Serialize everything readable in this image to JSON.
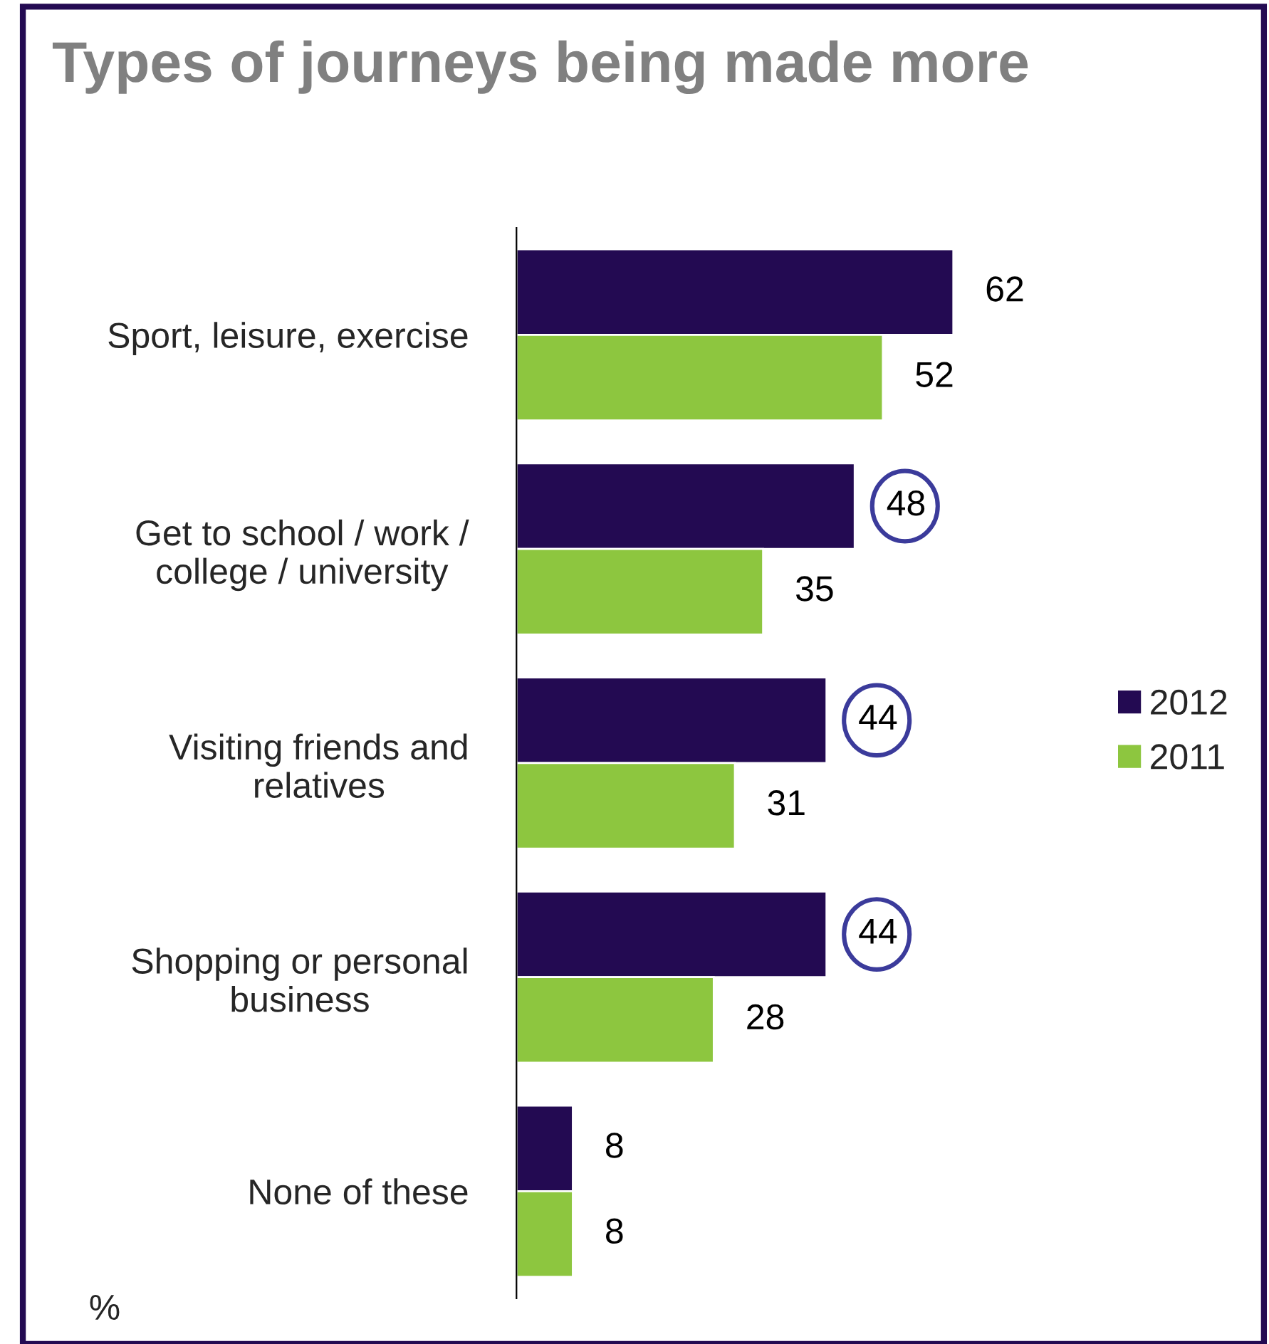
{
  "chart_data": {
    "type": "bar",
    "orientation": "horizontal",
    "title": "Types of journeys being made more",
    "categories": [
      "Sport, leisure, exercise",
      "Get to school / work /\ncollege / university",
      "Visiting friends and\nrelatives",
      "Shopping or personal\nbusiness",
      "None of these"
    ],
    "series": [
      {
        "name": "2012",
        "color": "#230a52",
        "values": [
          62,
          48,
          44,
          44,
          8
        ]
      },
      {
        "name": "2011",
        "color": "#8dc63f",
        "values": [
          52,
          35,
          31,
          28,
          8
        ]
      }
    ],
    "data_labels": true,
    "legend": "right",
    "grid": false,
    "annotations": [
      "%"
    ]
  }
}
